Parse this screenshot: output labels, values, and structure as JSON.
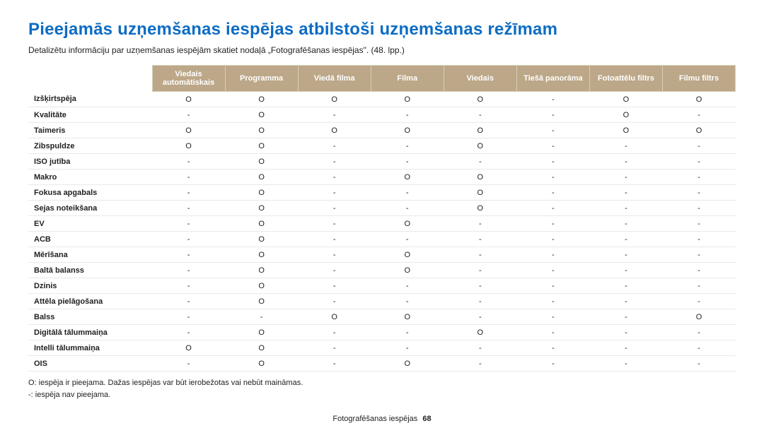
{
  "title": "Pieejamās uzņemšanas iespējas atbilstoši uzņemšanas režīmam",
  "subtitle": "Detalizētu informāciju par uzņemšanas iespējām skatiet nodaļā „Fotografēšanas iespējas\". (48. lpp.)",
  "columns": [
    "Viedais automātiskais",
    "Programma",
    "Viedā filma",
    "Filma",
    "Viedais",
    "Tiešā panorāma",
    "Fotoattēlu filtrs",
    "Filmu filtrs"
  ],
  "rowLabels": [
    "Izšķirtspēja",
    "Kvalitāte",
    "Taimeris",
    "Zibspuldze",
    "ISO jutība",
    "Makro",
    "Fokusa apgabals",
    "Sejas noteikšana",
    "EV",
    "ACB",
    "Mērīšana",
    "Baltā balanss",
    "Dzinis",
    "Attēla pielāgošana",
    "Balss",
    "Digitālā tālummaiņa",
    "Intelli tālummaiņa",
    "OIS"
  ],
  "cells": [
    [
      "O",
      "O",
      "O",
      "O",
      "O",
      "-",
      "O",
      "O"
    ],
    [
      "-",
      "O",
      "-",
      "-",
      "-",
      "-",
      "O",
      "-"
    ],
    [
      "O",
      "O",
      "O",
      "O",
      "O",
      "-",
      "O",
      "O"
    ],
    [
      "O",
      "O",
      "-",
      "-",
      "O",
      "-",
      "-",
      "-"
    ],
    [
      "-",
      "O",
      "-",
      "-",
      "-",
      "-",
      "-",
      "-"
    ],
    [
      "-",
      "O",
      "-",
      "O",
      "O",
      "-",
      "-",
      "-"
    ],
    [
      "-",
      "O",
      "-",
      "-",
      "O",
      "-",
      "-",
      "-"
    ],
    [
      "-",
      "O",
      "-",
      "-",
      "O",
      "-",
      "-",
      "-"
    ],
    [
      "-",
      "O",
      "-",
      "O",
      "-",
      "-",
      "-",
      "-"
    ],
    [
      "-",
      "O",
      "-",
      "-",
      "-",
      "-",
      "-",
      "-"
    ],
    [
      "-",
      "O",
      "-",
      "O",
      "-",
      "-",
      "-",
      "-"
    ],
    [
      "-",
      "O",
      "-",
      "O",
      "-",
      "-",
      "-",
      "-"
    ],
    [
      "-",
      "O",
      "-",
      "-",
      "-",
      "-",
      "-",
      "-"
    ],
    [
      "-",
      "O",
      "-",
      "-",
      "-",
      "-",
      "-",
      "-"
    ],
    [
      "-",
      "-",
      "O",
      "O",
      "-",
      "-",
      "-",
      "O"
    ],
    [
      "-",
      "O",
      "-",
      "-",
      "O",
      "-",
      "-",
      "-"
    ],
    [
      "O",
      "O",
      "-",
      "-",
      "-",
      "-",
      "-",
      "-"
    ],
    [
      "-",
      "O",
      "-",
      "O",
      "-",
      "-",
      "-",
      "-"
    ]
  ],
  "legend1": "O: iespēja ir pieejama. Dažas iespējas var būt ierobežotas vai nebūt maināmas.",
  "legend2": "-: iespēja nav pieejama.",
  "footerText": "Fotografēšanas iespējas",
  "footerPage": "68",
  "style": {
    "title_color": "#0d6cc4",
    "header_bg": "#bca788",
    "header_fg": "#ffffff",
    "row_border": "#e9e9e9",
    "body_font_size": 11,
    "title_font_size": 24
  }
}
